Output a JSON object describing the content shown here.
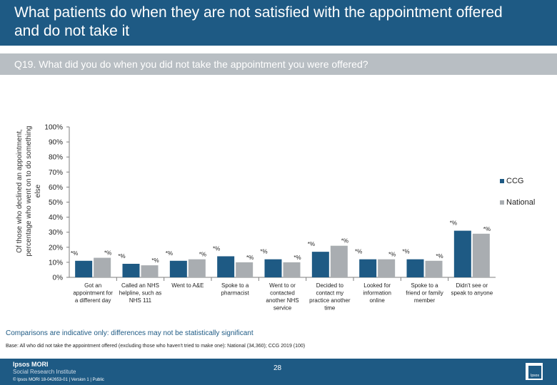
{
  "header": {
    "title": "What patients do when they are not satisfied with the appointment offered and do not take it"
  },
  "question": {
    "text": "Q19. What did you do when you did not take the appointment you were offered?"
  },
  "chart_data": {
    "type": "bar",
    "ylabel": "Of those who declined an appointment, percentage who went on to do something else",
    "ylim": [
      0,
      100
    ],
    "yticks": [
      0,
      10,
      20,
      30,
      40,
      50,
      60,
      70,
      80,
      90,
      100
    ],
    "tick_suffix": "%",
    "categories": [
      [
        "Got an",
        "appointment for",
        "a different day"
      ],
      [
        "Called an NHS",
        "helpline, such as",
        "NHS 111"
      ],
      [
        "Went to A&E"
      ],
      [
        "Spoke to a",
        "pharmacist"
      ],
      [
        "Went to or",
        "contacted",
        "another NHS",
        "service"
      ],
      [
        "Decided to",
        "contact my",
        "practice another",
        "time"
      ],
      [
        "Looked for",
        "information",
        "online"
      ],
      [
        "Spoke to a",
        "friend or family",
        "member"
      ],
      [
        "Didn't see or",
        "speak to anyone"
      ]
    ],
    "series": [
      {
        "name": "CCG",
        "color": "#1e5a84",
        "values": [
          11,
          9,
          11,
          14,
          12,
          17,
          12,
          12,
          31
        ],
        "labels": [
          "*%",
          "*%",
          "*%",
          "*%",
          "*%",
          "*%",
          "*%",
          "*%",
          "*%"
        ]
      },
      {
        "name": "National",
        "color": "#a9adb1",
        "values": [
          13,
          8,
          12,
          10,
          10,
          21,
          12,
          11,
          29
        ],
        "labels": [
          "*%",
          "*%",
          "*%",
          "*%",
          "*%",
          "*%",
          "*%",
          "*%",
          "*%"
        ]
      }
    ],
    "legend_position": "right"
  },
  "note": "Comparisons are indicative only: differences may not be statistically significant",
  "base": "Base: All who did not take the appointment offered (excluding those who haven't tried to make one): National (34,360); CCG 2019 (100)",
  "footer": {
    "brand_line1": "Ipsos MORI",
    "brand_line2": "Social Research Institute",
    "copyright": "© Ipsos MORI     18-042653-01 | Version 1 | Public",
    "page_number": "28",
    "logo_text": "Ipsos"
  }
}
